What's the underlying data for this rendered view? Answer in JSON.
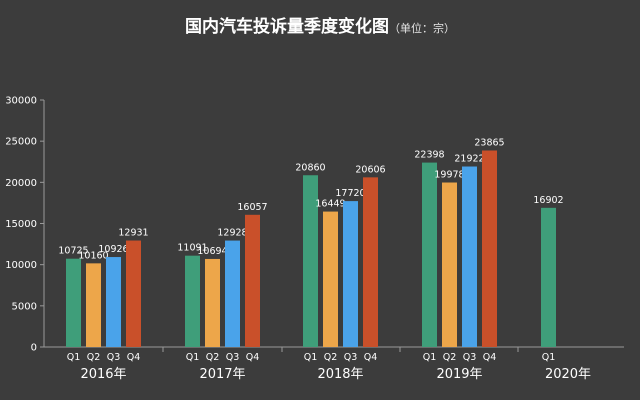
{
  "chart_data": {
    "type": "bar",
    "title": "国内汽车投诉量季度变化图",
    "subtitle": "（单位：宗）",
    "groups": [
      {
        "label": "2016年",
        "quarters": [
          "Q1",
          "Q2",
          "Q3",
          "Q4"
        ],
        "values": [
          10725,
          10160,
          10926,
          12931
        ]
      },
      {
        "label": "2017年",
        "quarters": [
          "Q1",
          "Q2",
          "Q3",
          "Q4"
        ],
        "values": [
          11091,
          10694,
          12928,
          16057
        ]
      },
      {
        "label": "2018年",
        "quarters": [
          "Q1",
          "Q2",
          "Q3",
          "Q4"
        ],
        "values": [
          20860,
          16449,
          17720,
          20606
        ]
      },
      {
        "label": "2019年",
        "quarters": [
          "Q1",
          "Q2",
          "Q3",
          "Q4"
        ],
        "values": [
          22398,
          19978,
          21922,
          23865
        ]
      },
      {
        "label": "2020年",
        "quarters": [
          "Q1"
        ],
        "values": [
          16902
        ]
      }
    ],
    "yticks": [
      "0",
      "5000",
      "10000",
      "15000",
      "20000",
      "25000",
      "30000"
    ],
    "ylim": [
      0,
      30000
    ],
    "grid": false,
    "legend": "none",
    "colors": {
      "Q1": "#3f9e7a",
      "Q2": "#eda64a",
      "Q3": "#4aa3ea",
      "Q4": "#c9502a"
    },
    "background": "#3c3c3c",
    "text_color": "#ffffff",
    "axis_color": "#9a9a9a"
  }
}
